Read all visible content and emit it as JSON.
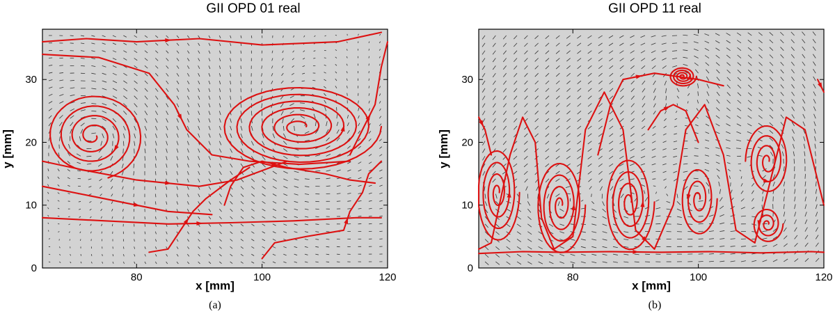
{
  "chart_data": [
    {
      "type": "vector-field-streamlines",
      "panel": "a",
      "title": "GII   OPD 01 real",
      "caption": "(a)",
      "xlabel": "x [mm]",
      "ylabel": "y [mm]",
      "xlim": [
        65,
        120
      ],
      "ylim": [
        0,
        38
      ],
      "xticks": [
        80,
        100,
        120
      ],
      "yticks": [
        0,
        10,
        20,
        30
      ],
      "vortex_centers": [
        {
          "x": 73,
          "y": 21,
          "rx": 8,
          "ry": 7,
          "turns": 4.2,
          "sense": -1
        },
        {
          "x": 106,
          "y": 22.5,
          "rx": 13,
          "ry": 7,
          "turns": 6,
          "sense": 1
        }
      ],
      "waves": [],
      "streamlines": [
        [
          [
            65,
            36
          ],
          [
            72,
            36.5
          ],
          [
            80,
            36
          ],
          [
            90,
            36.5
          ],
          [
            100,
            35.5
          ],
          [
            112,
            36
          ],
          [
            119,
            37.5
          ]
        ],
        [
          [
            65,
            34
          ],
          [
            74,
            33.5
          ],
          [
            82,
            31
          ],
          [
            86,
            26
          ],
          [
            88,
            22
          ],
          [
            92,
            18
          ],
          [
            98,
            17
          ],
          [
            106,
            16.5
          ],
          [
            114,
            17
          ]
        ],
        [
          [
            65,
            17
          ],
          [
            72,
            15.5
          ],
          [
            80,
            14
          ],
          [
            90,
            13
          ],
          [
            96,
            14
          ],
          [
            104,
            17
          ]
        ],
        [
          [
            65,
            13
          ],
          [
            75,
            11
          ],
          [
            85,
            9
          ],
          [
            92,
            8.5
          ]
        ],
        [
          [
            82,
            2.5
          ],
          [
            85,
            3
          ],
          [
            87,
            6
          ],
          [
            89,
            9
          ],
          [
            91,
            11
          ],
          [
            95,
            14
          ],
          [
            98,
            16
          ]
        ],
        [
          [
            94,
            10
          ],
          [
            95,
            13
          ],
          [
            97,
            16
          ],
          [
            100,
            17
          ],
          [
            104,
            16
          ],
          [
            110,
            15
          ],
          [
            114,
            14
          ],
          [
            118,
            13.5
          ]
        ],
        [
          [
            100,
            1.5
          ],
          [
            102,
            4
          ],
          [
            107,
            5
          ],
          [
            113,
            6
          ],
          [
            114,
            9
          ],
          [
            116,
            12
          ],
          [
            117,
            15
          ],
          [
            119,
            17
          ]
        ],
        [
          [
            114,
            18
          ],
          [
            116,
            22
          ],
          [
            118,
            26
          ],
          [
            119,
            32
          ],
          [
            120,
            36
          ]
        ],
        [
          [
            65,
            8
          ],
          [
            75,
            7.5
          ],
          [
            85,
            7
          ],
          [
            95,
            7.2
          ],
          [
            105,
            7.5
          ],
          [
            115,
            8
          ],
          [
            119,
            8
          ]
        ]
      ]
    },
    {
      "type": "vector-field-streamlines",
      "panel": "b",
      "title": "GII   OPD 11 real",
      "caption": "(b)",
      "xlabel": "x [mm]",
      "ylabel": "y [mm]",
      "xlim": [
        65,
        120
      ],
      "ylim": [
        0,
        38
      ],
      "xticks": [
        80,
        100,
        120
      ],
      "yticks": [
        0,
        10,
        20,
        30
      ],
      "vortex_centers": [
        {
          "x": 68,
          "y": 12,
          "rx": 3.5,
          "ry": 8,
          "turns": 4,
          "sense": 1
        },
        {
          "x": 78,
          "y": 10,
          "rx": 4,
          "ry": 8,
          "turns": 4,
          "sense": 1
        },
        {
          "x": 89,
          "y": 10.5,
          "rx": 4,
          "ry": 8,
          "turns": 4,
          "sense": 1
        },
        {
          "x": 97.5,
          "y": 30.5,
          "rx": 2.2,
          "ry": 1.6,
          "turns": 4,
          "sense": 1
        },
        {
          "x": 100,
          "y": 11,
          "rx": 3,
          "ry": 6,
          "turns": 3,
          "sense": 1
        },
        {
          "x": 111,
          "y": 17,
          "rx": 3.5,
          "ry": 6,
          "turns": 3.5,
          "sense": 1
        },
        {
          "x": 111,
          "y": 7,
          "rx": 2.5,
          "ry": 3,
          "turns": 3,
          "sense": 1
        }
      ],
      "waves": [
        [
          [
            65,
            3
          ],
          [
            67,
            4
          ],
          [
            70,
            18
          ],
          [
            72,
            24
          ],
          [
            74,
            20
          ],
          [
            75,
            8
          ],
          [
            77,
            3
          ],
          [
            80,
            5
          ],
          [
            82,
            22
          ],
          [
            85,
            28
          ],
          [
            88,
            22
          ],
          [
            90,
            6
          ],
          [
            93,
            3
          ],
          [
            96,
            10
          ],
          [
            98,
            22
          ],
          [
            101,
            26
          ],
          [
            104,
            18
          ],
          [
            106,
            6
          ],
          [
            109,
            4
          ],
          [
            112,
            16
          ],
          [
            114,
            24
          ],
          [
            117,
            22
          ],
          [
            119,
            14
          ],
          [
            120,
            10
          ]
        ],
        [
          [
            65,
            2.3
          ],
          [
            72,
            2.6
          ],
          [
            78,
            2.5
          ],
          [
            86,
            2.6
          ],
          [
            94,
            2.5
          ],
          [
            102,
            2.6
          ],
          [
            110,
            2.4
          ],
          [
            118,
            2.6
          ],
          [
            120,
            2.5
          ]
        ]
      ],
      "streamlines": [
        [
          [
            84,
            18
          ],
          [
            86,
            26
          ],
          [
            88,
            30
          ],
          [
            93,
            31
          ],
          [
            100,
            30
          ],
          [
            104,
            29
          ]
        ],
        [
          [
            92,
            22
          ],
          [
            94,
            25
          ],
          [
            96,
            26
          ],
          [
            98,
            25
          ],
          [
            100,
            20
          ]
        ],
        [
          [
            65,
            24
          ],
          [
            66,
            22
          ],
          [
            67,
            18
          ]
        ],
        [
          [
            119,
            30
          ],
          [
            120,
            28
          ]
        ]
      ]
    }
  ]
}
